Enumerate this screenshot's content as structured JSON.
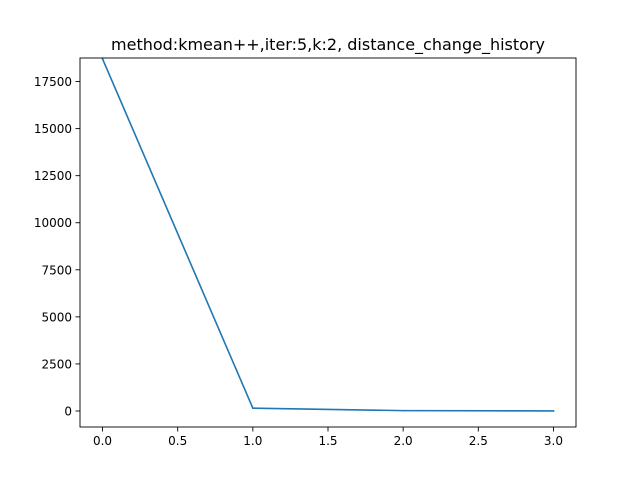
{
  "chart_data": {
    "type": "line",
    "title": "method:kmean++,iter:5,k:2, distance_change_history",
    "xlabel": "",
    "ylabel": "",
    "xlim": [
      -0.15,
      3.15
    ],
    "ylim": [
      -850,
      18750
    ],
    "x_ticks": [
      0.0,
      0.5,
      1.0,
      1.5,
      2.0,
      2.5,
      3.0
    ],
    "x_tick_labels": [
      "0.0",
      "0.5",
      "1.0",
      "1.5",
      "2.0",
      "2.5",
      "3.0"
    ],
    "y_ticks": [
      0,
      2500,
      5000,
      7500,
      10000,
      12500,
      15000,
      17500
    ],
    "y_tick_labels": [
      "0",
      "2500",
      "5000",
      "7500",
      "10000",
      "12500",
      "15000",
      "17500"
    ],
    "grid": false,
    "series": [
      {
        "x": [
          0,
          1,
          2,
          3
        ],
        "values": [
          18700,
          150,
          20,
          5
        ],
        "color": "#1f77b4"
      }
    ]
  }
}
